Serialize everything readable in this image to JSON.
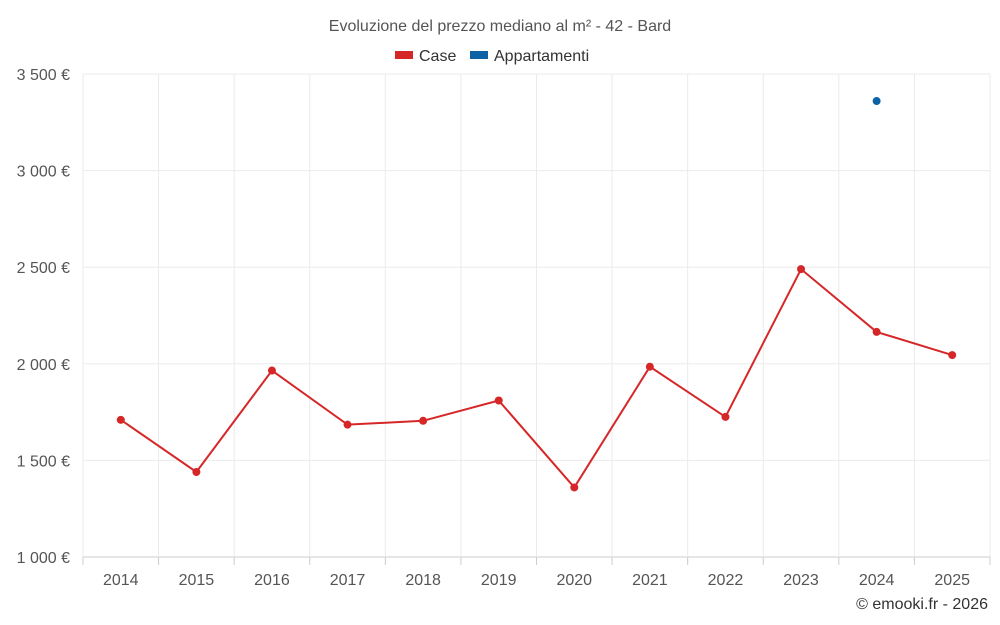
{
  "chart_data": {
    "type": "line",
    "title": "Evoluzione del prezzo mediano al m² - 42 - Bard",
    "categories": [
      "2014",
      "2015",
      "2016",
      "2017",
      "2018",
      "2019",
      "2020",
      "2021",
      "2022",
      "2023",
      "2024",
      "2025"
    ],
    "series": [
      {
        "name": "Case",
        "color": "#d62728",
        "values": [
          1710,
          1440,
          1965,
          1685,
          1705,
          1810,
          1360,
          1985,
          1725,
          2490,
          2165,
          2045
        ]
      },
      {
        "name": "Appartamenti",
        "color": "#0b63a5",
        "values": [
          null,
          null,
          null,
          null,
          null,
          null,
          null,
          null,
          null,
          null,
          3360,
          null
        ]
      }
    ],
    "ylim": [
      1000,
      3500
    ],
    "yticks": [
      1000,
      1500,
      2000,
      2500,
      3000,
      3500
    ],
    "ytick_labels": [
      "1 000 €",
      "1 500 €",
      "2 000 €",
      "2 500 €",
      "3 000 €",
      "3 500 €"
    ],
    "xlabel": "",
    "ylabel": "",
    "grid": true,
    "legend": "top-center"
  },
  "credit": "© emooki.fr - 2026"
}
